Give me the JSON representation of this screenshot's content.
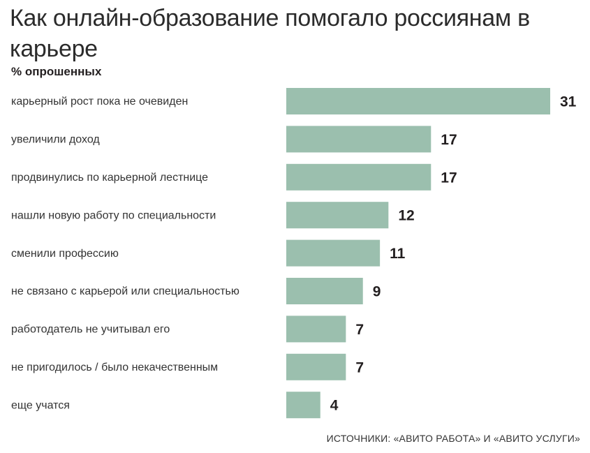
{
  "chart_data": {
    "type": "bar",
    "orientation": "horizontal",
    "title": "Как онлайн-образование помогало россиянам в карьере",
    "subtitle": "% опрошенных",
    "categories": [
      "карьерный рост пока не очевиден",
      "увеличили доход",
      "продвинулись по карьерной лестнице",
      "нашли новую работу по специальности",
      "сменили профессию",
      "не связано с карьерой или специальностью",
      "работодатель не учитывал его",
      "не пригодилось / было некачественным",
      "еще учатся"
    ],
    "values": [
      31,
      17,
      17,
      12,
      11,
      9,
      7,
      7,
      4
    ],
    "xlim": [
      0,
      31
    ],
    "bar_color": "#9bbfae",
    "grid": false,
    "legend": "none"
  },
  "source": "ИСТОЧНИКИ: «АВИТО РАБОТА» И «АВИТО УСЛУГИ»"
}
